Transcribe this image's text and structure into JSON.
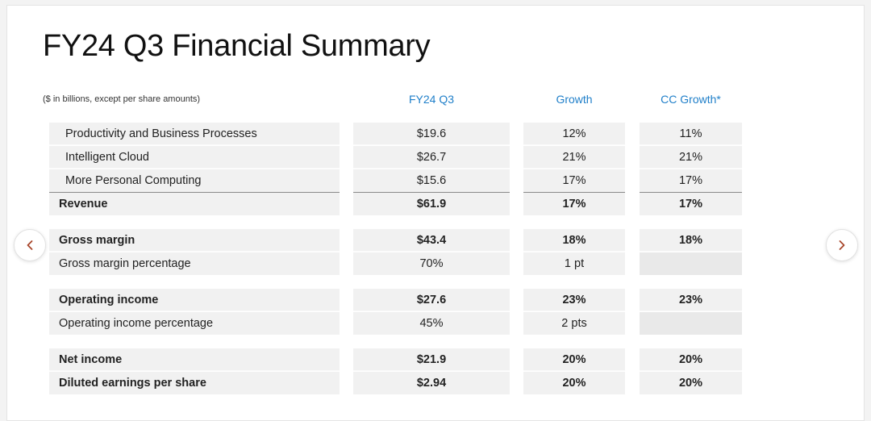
{
  "title": "FY24 Q3 Financial Summary",
  "note": "($ in billions, except per share amounts)",
  "columns": {
    "fy": "FY24 Q3",
    "growth": "Growth",
    "cc": "CC Growth*"
  },
  "rows": [
    {
      "label": "Productivity and Business Processes",
      "fy": "$19.6",
      "growth": "12%",
      "cc": "11%"
    },
    {
      "label": "Intelligent Cloud",
      "fy": "$26.7",
      "growth": "21%",
      "cc": "21%"
    },
    {
      "label": "More Personal Computing",
      "fy": "$15.6",
      "growth": "17%",
      "cc": "17%"
    },
    {
      "label": "Revenue",
      "fy": "$61.9",
      "growth": "17%",
      "cc": "17%"
    },
    {
      "label": "Gross margin",
      "fy": "$43.4",
      "growth": "18%",
      "cc": "18%"
    },
    {
      "label": "Gross margin percentage",
      "fy": "70%",
      "growth": "1 pt",
      "cc": ""
    },
    {
      "label": "Operating income",
      "fy": "$27.6",
      "growth": "23%",
      "cc": "23%"
    },
    {
      "label": "Operating income percentage",
      "fy": "45%",
      "growth": "2 pts",
      "cc": ""
    },
    {
      "label": "Net income",
      "fy": "$21.9",
      "growth": "20%",
      "cc": "20%"
    },
    {
      "label": "Diluted earnings per share",
      "fy": "$2.94",
      "growth": "20%",
      "cc": "20%"
    }
  ],
  "nav": {
    "prev_icon": "chevron-left-icon",
    "next_icon": "chevron-right-icon",
    "arrow_color": "#a8462a"
  },
  "colors": {
    "header_blue": "#1f7fc9",
    "cell_background": "#f1f1f1"
  }
}
